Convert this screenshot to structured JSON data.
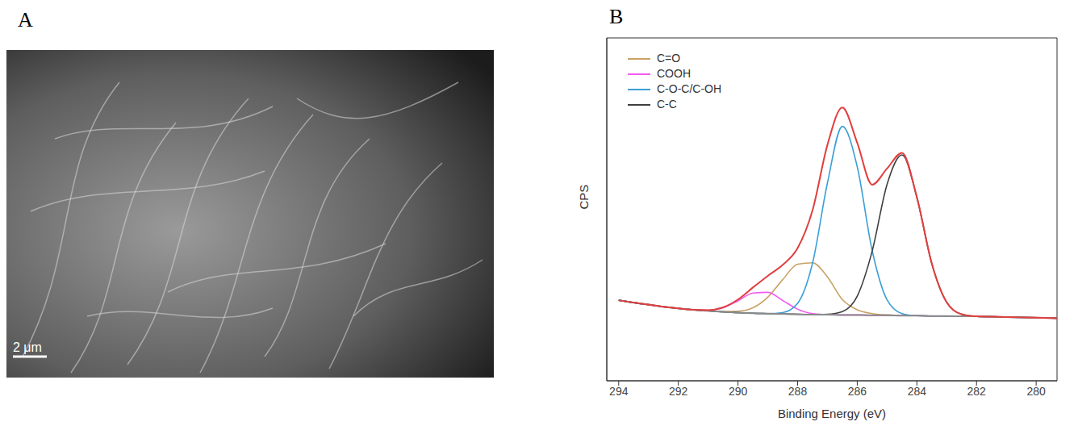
{
  "panel_labels": [
    "A",
    "B"
  ],
  "image": {
    "scale_bar": "2 μm"
  },
  "chart_data": {
    "type": "line",
    "x_label": "Binding Energy (eV)",
    "y_label": "CPS",
    "x": [
      294,
      293.5,
      293,
      292.5,
      292,
      291.5,
      291,
      290.5,
      290,
      289.5,
      289,
      288.5,
      288,
      287.5,
      287,
      286.5,
      286,
      285.5,
      285,
      284.5,
      284,
      283.5,
      283,
      282.5,
      282,
      281.5,
      281,
      280.5,
      280,
      279.5,
      279
    ],
    "xlim": [
      294.4,
      279.3
    ],
    "xticks": [
      294,
      292,
      290,
      288,
      286,
      284,
      282,
      280
    ],
    "ylim": [
      0,
      100
    ],
    "yticks": [],
    "tick_labels": "x",
    "legend": "top-left",
    "series": [
      {
        "name": "C=O",
        "color": "#c9a163",
        "values": [
          23.5,
          22.8,
          22.2,
          21.6,
          21.1,
          20.7,
          20.4,
          20.2,
          20.3,
          21.3,
          24.4,
          29.5,
          34.0,
          34.4,
          30.3,
          23.7,
          20.7,
          19.6,
          19.2,
          19.0,
          19.0,
          18.9,
          18.9,
          18.8,
          18.8,
          18.7,
          18.6,
          18.5,
          18.4,
          18.3,
          18.2
        ]
      },
      {
        "name": "COOH",
        "color": "#f25cf0",
        "values": [
          23.5,
          22.8,
          22.2,
          21.6,
          21.1,
          20.7,
          20.6,
          21.3,
          23.3,
          25.6,
          25.8,
          23.4,
          20.9,
          19.6,
          19.3,
          19.2,
          19.2,
          19.1,
          19.1,
          19.0,
          19.0,
          18.9,
          18.9,
          18.8,
          18.8,
          18.7,
          18.6,
          18.5,
          18.4,
          18.3,
          18.2
        ]
      },
      {
        "name": "C-O-C/C-OH",
        "color": "#3b9fd6",
        "values": [
          23.5,
          22.8,
          22.2,
          21.6,
          21.1,
          20.7,
          20.4,
          20.1,
          19.9,
          19.7,
          19.6,
          19.9,
          22.6,
          34.3,
          57.7,
          74.2,
          62.4,
          38.0,
          23.6,
          19.6,
          19.0,
          18.9,
          18.9,
          18.8,
          18.8,
          18.7,
          18.6,
          18.5,
          18.4,
          18.3,
          18.2
        ]
      },
      {
        "name": "C-C",
        "color": "#3f3f3f",
        "values": [
          23.5,
          22.8,
          22.2,
          21.6,
          21.1,
          20.7,
          20.4,
          20.1,
          19.9,
          19.7,
          19.6,
          19.5,
          19.4,
          19.3,
          19.4,
          20.2,
          24.7,
          37.8,
          57.3,
          65.9,
          53.5,
          34.2,
          22.9,
          19.4,
          18.8,
          18.7,
          18.6,
          18.5,
          18.4,
          18.3,
          18.2
        ]
      },
      {
        "color": "#8a8a8a",
        "values": [
          23.5,
          22.8,
          22.2,
          21.6,
          21.1,
          20.7,
          20.4,
          20.1,
          19.9,
          19.7,
          19.6,
          19.5,
          19.4,
          19.3,
          19.3,
          19.2,
          19.2,
          19.1,
          19.1,
          19.0,
          19.0,
          18.9,
          18.9,
          18.8,
          18.8,
          18.7,
          18.6,
          18.5,
          18.4,
          18.3,
          18.2
        ]
      },
      {
        "color": "#e0403f",
        "values": [
          23.5,
          22.8,
          22.2,
          21.6,
          21.1,
          20.7,
          20.6,
          21.4,
          23.7,
          27.2,
          30.6,
          33.8,
          38.7,
          49.7,
          68.8,
          79.7,
          69.4,
          57.2,
          61.9,
          66.5,
          53.5,
          34.2,
          22.9,
          19.4,
          18.8,
          18.7,
          18.6,
          18.5,
          18.4,
          18.3,
          18.2
        ]
      }
    ]
  }
}
